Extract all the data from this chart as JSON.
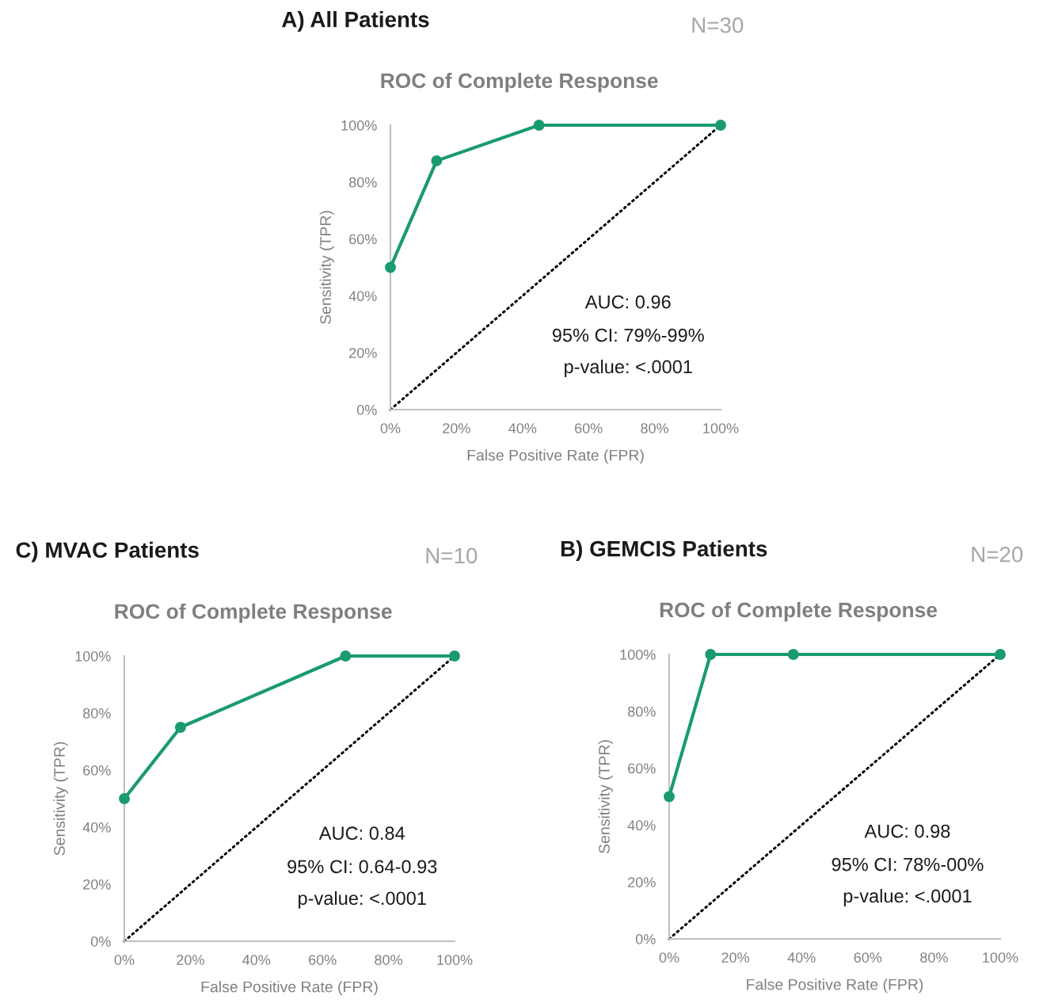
{
  "chart_data": [
    {
      "type": "line",
      "title": "A) All Patients",
      "subtitle": "ROC of Complete Response",
      "xlabel": "False Positive Rate (FPR)",
      "ylabel": "Sensitivity (TPR)",
      "annotations": [
        "N=30",
        "AUC: 0.96",
        "95% CI: 79%-99%",
        "p-value: <.0001"
      ],
      "series": [
        {
          "x": [
            0,
            14,
            45,
            100
          ],
          "values": [
            50,
            87.5,
            100,
            100
          ],
          "color": "#1a9a70",
          "marker": "circle",
          "line_style": "solid"
        },
        {
          "x": [
            0,
            100
          ],
          "values": [
            0,
            100
          ],
          "color": "#000000",
          "marker": "none",
          "line_style": "dotted"
        }
      ],
      "xlim": [
        0,
        100
      ],
      "ylim": [
        0,
        100
      ],
      "xticks": [
        {
          "value": 0,
          "label": "0%"
        },
        {
          "value": 20,
          "label": "20%"
        },
        {
          "value": 40,
          "label": "40%"
        },
        {
          "value": 60,
          "label": "60%"
        },
        {
          "value": 80,
          "label": "80%"
        },
        {
          "value": 100,
          "label": "100%"
        }
      ],
      "yticks": [
        {
          "value": 0,
          "label": "0%"
        },
        {
          "value": 20,
          "label": "20%"
        },
        {
          "value": 40,
          "label": "40%"
        },
        {
          "value": 60,
          "label": "60%"
        },
        {
          "value": 80,
          "label": "80%"
        },
        {
          "value": 100,
          "label": "100%"
        }
      ],
      "grid": false,
      "legend": false
    },
    {
      "type": "line",
      "title": "C) MVAC Patients",
      "subtitle": "ROC of Complete Response",
      "xlabel": "False Positive Rate (FPR)",
      "ylabel": "Sensitivity (TPR)",
      "annotations": [
        "N=10",
        "AUC: 0.84",
        "95% CI: 0.64-0.93",
        "p-value: <.0001"
      ],
      "series": [
        {
          "x": [
            0,
            17,
            67,
            100
          ],
          "values": [
            50,
            75,
            100,
            100
          ],
          "color": "#1a9a70",
          "marker": "circle",
          "line_style": "solid"
        },
        {
          "x": [
            0,
            100
          ],
          "values": [
            0,
            100
          ],
          "color": "#000000",
          "marker": "none",
          "line_style": "dotted"
        }
      ],
      "xlim": [
        0,
        100
      ],
      "ylim": [
        0,
        100
      ],
      "xticks": [
        {
          "value": 0,
          "label": "0%"
        },
        {
          "value": 20,
          "label": "20%"
        },
        {
          "value": 40,
          "label": "40%"
        },
        {
          "value": 60,
          "label": "60%"
        },
        {
          "value": 80,
          "label": "80%"
        },
        {
          "value": 100,
          "label": "100%"
        }
      ],
      "yticks": [
        {
          "value": 0,
          "label": "0%"
        },
        {
          "value": 20,
          "label": "20%"
        },
        {
          "value": 40,
          "label": "40%"
        },
        {
          "value": 60,
          "label": "60%"
        },
        {
          "value": 80,
          "label": "80%"
        },
        {
          "value": 100,
          "label": "100%"
        }
      ],
      "grid": false,
      "legend": false
    },
    {
      "type": "line",
      "title": "B) GEMCIS Patients",
      "subtitle": "ROC of Complete Response",
      "xlabel": "False Positive Rate (FPR)",
      "ylabel": "Sensitivity (TPR)",
      "annotations": [
        "N=20",
        "AUC: 0.98",
        "95% CI: 78%-00%",
        "p-value: <.0001"
      ],
      "series": [
        {
          "x": [
            0,
            12.5,
            37.5,
            100
          ],
          "values": [
            50,
            100,
            100,
            100
          ],
          "color": "#1a9a70",
          "marker": "circle",
          "line_style": "solid"
        },
        {
          "x": [
            0,
            100
          ],
          "values": [
            0,
            100
          ],
          "color": "#000000",
          "marker": "none",
          "line_style": "dotted"
        }
      ],
      "xlim": [
        0,
        100
      ],
      "ylim": [
        0,
        100
      ],
      "xticks": [
        {
          "value": 0,
          "label": "0%"
        },
        {
          "value": 20,
          "label": "20%"
        },
        {
          "value": 40,
          "label": "40%"
        },
        {
          "value": 60,
          "label": "60%"
        },
        {
          "value": 80,
          "label": "80%"
        },
        {
          "value": 100,
          "label": "100%"
        }
      ],
      "yticks": [
        {
          "value": 0,
          "label": "0%"
        },
        {
          "value": 20,
          "label": "20%"
        },
        {
          "value": 40,
          "label": "40%"
        },
        {
          "value": 60,
          "label": "60%"
        },
        {
          "value": 80,
          "label": "80%"
        },
        {
          "value": 100,
          "label": "100%"
        }
      ],
      "grid": false,
      "legend": false
    }
  ]
}
